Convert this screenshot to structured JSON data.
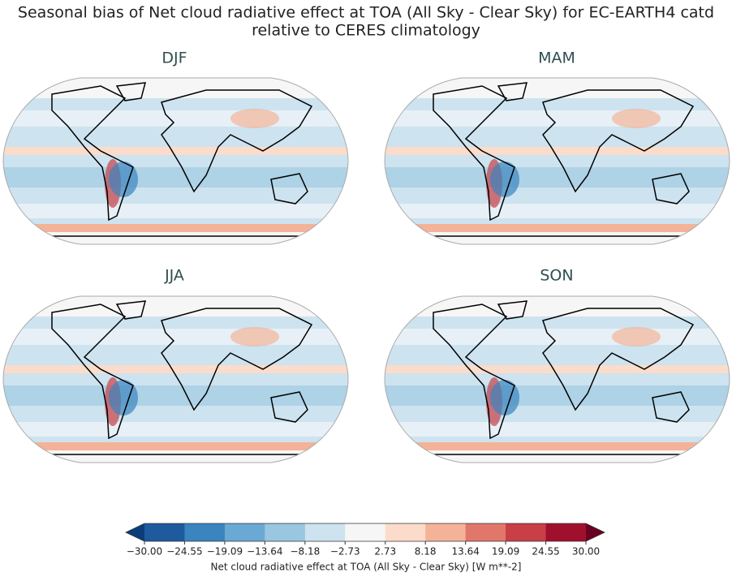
{
  "title": [
    "Seasonal bias of Net cloud radiative effect at TOA (All Sky - Clear Sky) for EC-EARTH4 catd",
    "relative to CERES climatology"
  ],
  "panels": [
    {
      "title": "DJF"
    },
    {
      "title": "MAM"
    },
    {
      "title": "JJA"
    },
    {
      "title": "SON"
    }
  ],
  "colorbar": {
    "label": "Net cloud radiative effect at TOA (All Sky - Clear Sky) [W m**-2]",
    "ticks": [
      {
        "value": -30,
        "label": "−30.00"
      },
      {
        "value": -24.55,
        "label": "−24.55"
      },
      {
        "value": -19.09,
        "label": "−19.09"
      },
      {
        "value": -13.64,
        "label": "−13.64"
      },
      {
        "value": -8.18,
        "label": "−8.18"
      },
      {
        "value": -2.73,
        "label": "−2.73"
      },
      {
        "value": 2.73,
        "label": "2.73"
      },
      {
        "value": 8.18,
        "label": "8.18"
      },
      {
        "value": 13.64,
        "label": "13.64"
      },
      {
        "value": 19.09,
        "label": "19.09"
      },
      {
        "value": 24.55,
        "label": "24.55"
      },
      {
        "value": 30,
        "label": "30.00"
      }
    ],
    "colors": [
      "#1d5a9e",
      "#3a84bf",
      "#6aa9d3",
      "#99c7e0",
      "#cde3ef",
      "#f6f6f6",
      "#fbdccb",
      "#f4b398",
      "#e1776a",
      "#c83f46",
      "#a0102c"
    ],
    "under_color": "#0b3d7a",
    "over_color": "#6b0120"
  }
}
